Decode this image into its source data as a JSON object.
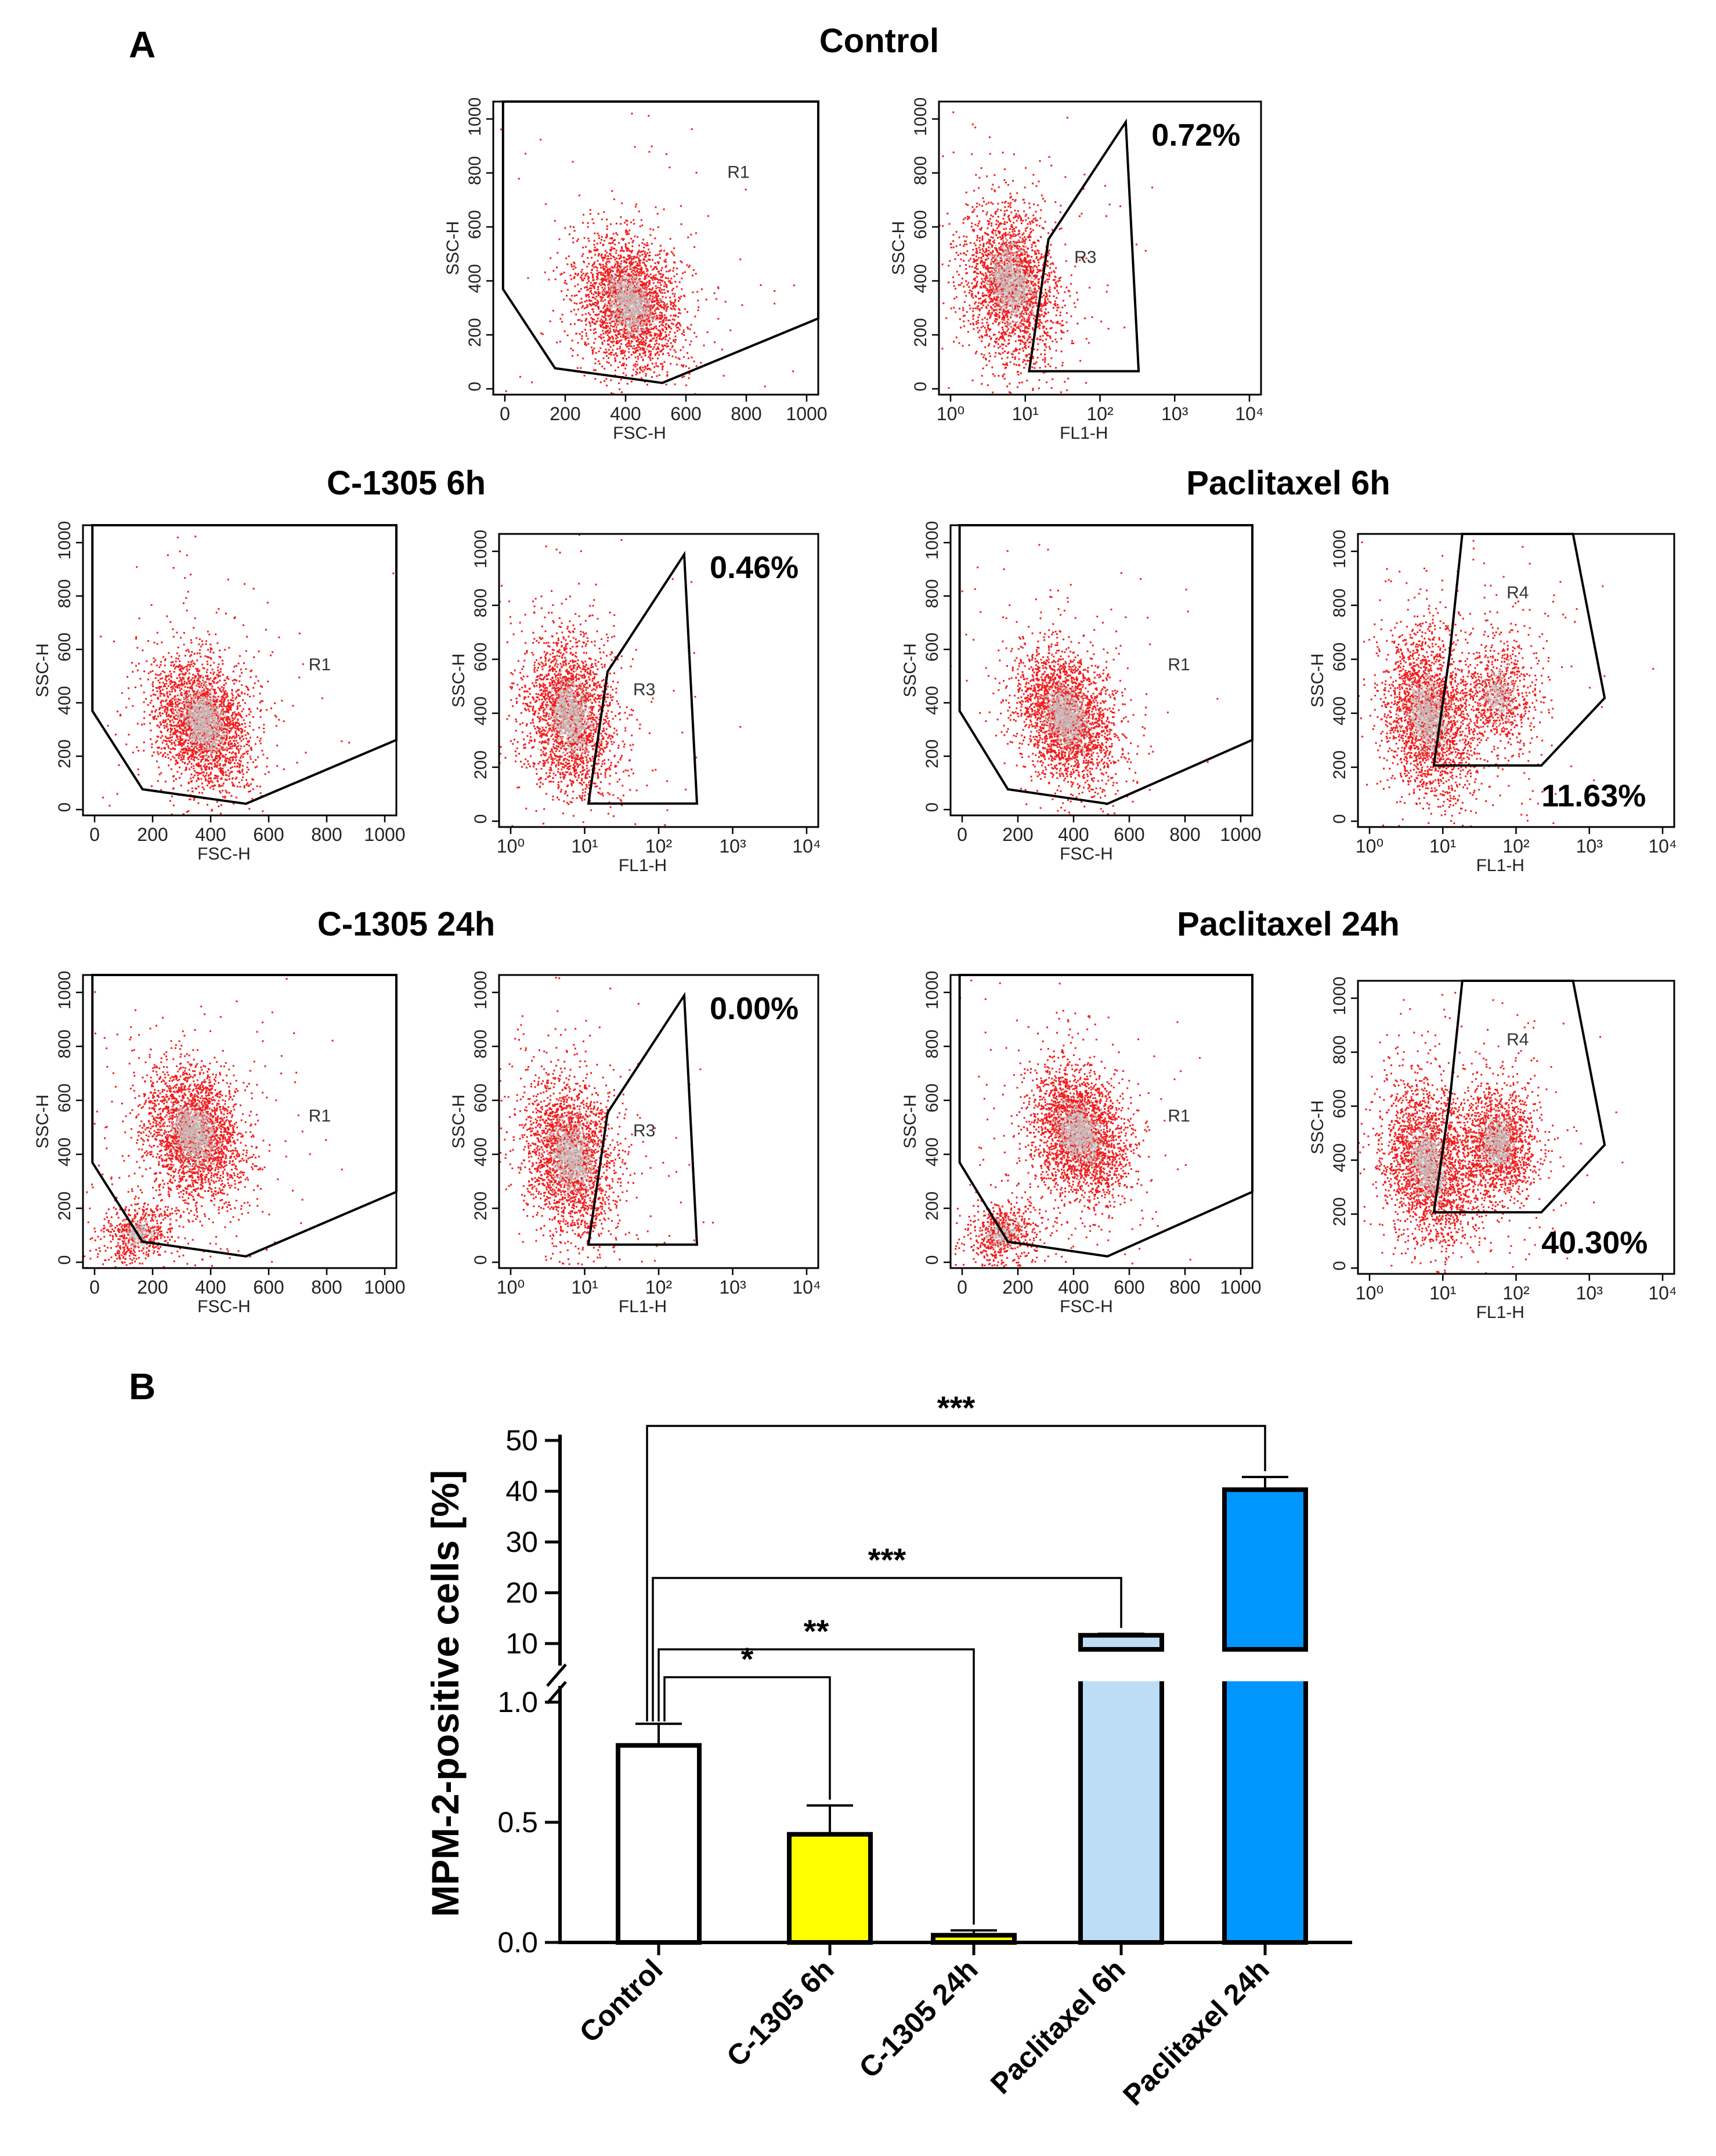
{
  "figure": {
    "panel_a_label": "A",
    "panel_b_label": "B",
    "colors": {
      "dot": "#f01e1e",
      "core": "#c8c8c8",
      "control_bar": "#ffffff",
      "c1305_6h_bar": "#ffff00",
      "c1305_24h_bar": "#ffff00",
      "paclitaxel_6h_bar": "#bddcf6",
      "paclitaxel_24h_bar": "#0096ff"
    }
  },
  "flow_panels": [
    {
      "id": "control",
      "title": "Control",
      "scatter": {
        "xlabel": "FSC-H",
        "ylabel": "SSC-H",
        "gate": "R1",
        "x_ticks": [
          "0",
          "200",
          "400",
          "600",
          "800",
          "1000"
        ],
        "y_ticks": [
          "0",
          "200",
          "400",
          "600",
          "800",
          "1000"
        ],
        "cloud_center_fsc": 410,
        "cloud_center_ssc": 320
      },
      "histo": {
        "xlabel": "FL1-H",
        "ylabel": "SSC-H",
        "gate": "R3",
        "percent": "0.72%",
        "x_ticks": [
          "10⁰",
          "10¹",
          "10²",
          "10³",
          "10⁴"
        ],
        "y_ticks": [
          "0",
          "200",
          "400",
          "600",
          "800",
          "1000"
        ]
      }
    },
    {
      "id": "c1305_6h",
      "title": "C-1305 6h",
      "scatter": {
        "xlabel": "FSC-H",
        "ylabel": "SSC-H",
        "gate": "R1",
        "x_ticks": [
          "0",
          "200",
          "400",
          "600",
          "800",
          "1000"
        ],
        "y_ticks": [
          "0",
          "200",
          "400",
          "600",
          "800",
          "1000"
        ],
        "cloud_center_fsc": 370,
        "cloud_center_ssc": 330
      },
      "histo": {
        "xlabel": "FL1-H",
        "ylabel": "SSC-H",
        "gate": "R3",
        "percent": "0.46%",
        "x_ticks": [
          "10⁰",
          "10¹",
          "10²",
          "10³",
          "10⁴"
        ],
        "y_ticks": [
          "0",
          "200",
          "400",
          "600",
          "800",
          "1000"
        ]
      }
    },
    {
      "id": "paclitaxel_6h",
      "title": "Paclitaxel 6h",
      "scatter": {
        "xlabel": "FSC-H",
        "ylabel": "SSC-H",
        "gate": "R1",
        "x_ticks": [
          "0",
          "200",
          "400",
          "600",
          "800",
          "1000"
        ],
        "y_ticks": [
          "0",
          "200",
          "400",
          "600",
          "800",
          "1000"
        ],
        "cloud_center_fsc": 370,
        "cloud_center_ssc": 350
      },
      "histo": {
        "xlabel": "FL1-H",
        "ylabel": "SSC-H",
        "gate": "R4",
        "percent": "11.63%",
        "x_ticks": [
          "10⁰",
          "10¹",
          "10²",
          "10³",
          "10⁴"
        ],
        "y_ticks": [
          "0",
          "200",
          "400",
          "600",
          "800",
          "1000"
        ]
      }
    },
    {
      "id": "c1305_24h",
      "title": "C-1305 24h",
      "scatter": {
        "xlabel": "FSC-H",
        "ylabel": "SSC-H",
        "gate": "R1",
        "x_ticks": [
          "0",
          "200",
          "400",
          "600",
          "800",
          "1000"
        ],
        "y_ticks": [
          "0",
          "200",
          "400",
          "600",
          "800",
          "1000"
        ],
        "cloud_center_fsc": 340,
        "cloud_center_ssc": 480
      },
      "histo": {
        "xlabel": "FL1-H",
        "ylabel": "SSC-H",
        "gate": "R3",
        "percent": "0.00%",
        "x_ticks": [
          "10⁰",
          "10¹",
          "10²",
          "10³",
          "10⁴"
        ],
        "y_ticks": [
          "0",
          "200",
          "400",
          "600",
          "800",
          "1000"
        ]
      }
    },
    {
      "id": "paclitaxel_24h",
      "title": "Paclitaxel 24h",
      "scatter": {
        "xlabel": "FSC-H",
        "ylabel": "SSC-H",
        "gate": "R1",
        "x_ticks": [
          "0",
          "200",
          "400",
          "600",
          "800",
          "1000"
        ],
        "y_ticks": [
          "0",
          "200",
          "400",
          "600",
          "800",
          "1000"
        ],
        "cloud_center_fsc": 420,
        "cloud_center_ssc": 480
      },
      "histo": {
        "xlabel": "FL1-H",
        "ylabel": "SSC-H",
        "gate": "R4",
        "percent": "40.30%",
        "x_ticks": [
          "10⁰",
          "10¹",
          "10²",
          "10³",
          "10⁴"
        ],
        "y_ticks": [
          "0",
          "200",
          "400",
          "600",
          "800",
          "1000"
        ]
      }
    }
  ],
  "chart_data": {
    "type": "bar",
    "ylabel": "MPM-2-positive cells [%]",
    "categories": [
      "Control",
      "C-1305 6h",
      "C-1305 24h",
      "Paclitaxel 6h",
      "Paclitaxel 24h"
    ],
    "values": [
      0.82,
      0.45,
      0.03,
      11.63,
      40.3
    ],
    "errors": [
      0.09,
      0.12,
      0.02,
      0.3,
      2.5
    ],
    "y_axis_broken": true,
    "lower_segment": {
      "ylim": [
        0,
        1.0
      ],
      "ticks": [
        "0.0",
        "0.5",
        "1.0"
      ]
    },
    "upper_segment": {
      "ylim": [
        10,
        50
      ],
      "ticks": [
        "10",
        "20",
        "30",
        "40",
        "50"
      ]
    },
    "significance": [
      {
        "from": "Control",
        "to": "C-1305 6h",
        "label": "*"
      },
      {
        "from": "Control",
        "to": "C-1305 24h",
        "label": "**"
      },
      {
        "from": "Control",
        "to": "Paclitaxel 6h",
        "label": "***"
      },
      {
        "from": "Control",
        "to": "Paclitaxel 24h",
        "label": "***"
      }
    ]
  }
}
